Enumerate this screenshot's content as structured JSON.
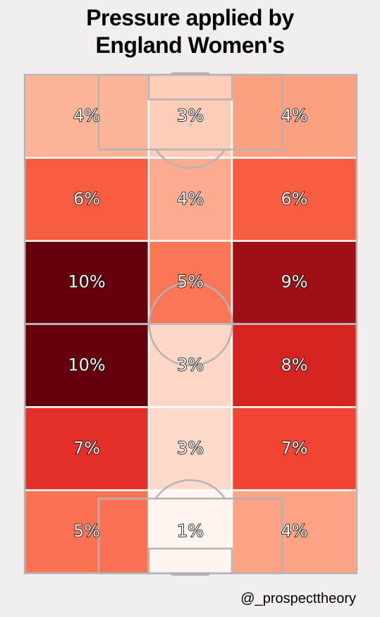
{
  "title": {
    "line1": "Pressure applied by",
    "line2": "England Women's"
  },
  "credit": "@_prospecttheory",
  "chart_data": {
    "type": "heatmap",
    "title": "Pressure applied by England Women's",
    "rows": 6,
    "cols": 3,
    "grid": [
      [
        "4%",
        "3%",
        "4%"
      ],
      [
        "6%",
        "4%",
        "6%"
      ],
      [
        "10%",
        "5%",
        "9%"
      ],
      [
        "10%",
        "3%",
        "8%"
      ],
      [
        "7%",
        "3%",
        "7%"
      ],
      [
        "5%",
        "1%",
        "4%"
      ]
    ],
    "values": [
      [
        4,
        3,
        4
      ],
      [
        6,
        4,
        6
      ],
      [
        10,
        5,
        9
      ],
      [
        10,
        3,
        8
      ],
      [
        7,
        3,
        7
      ],
      [
        5,
        1,
        4
      ]
    ],
    "colors": [
      [
        "#fcb499",
        "#fdcdb9",
        "#fca082"
      ],
      [
        "#f75c41",
        "#fcab8f",
        "#f85d42"
      ],
      [
        "#67000d",
        "#fb7656",
        "#a00f15"
      ],
      [
        "#67000d",
        "#fdd7c6",
        "#d72322"
      ],
      [
        "#e32f27",
        "#fdd9c9",
        "#f14432"
      ],
      [
        "#fb7151",
        "#fff5f0",
        "#fca385"
      ]
    ],
    "line_color": "#b3b3b3",
    "cell_border_color": "#ffffff"
  }
}
